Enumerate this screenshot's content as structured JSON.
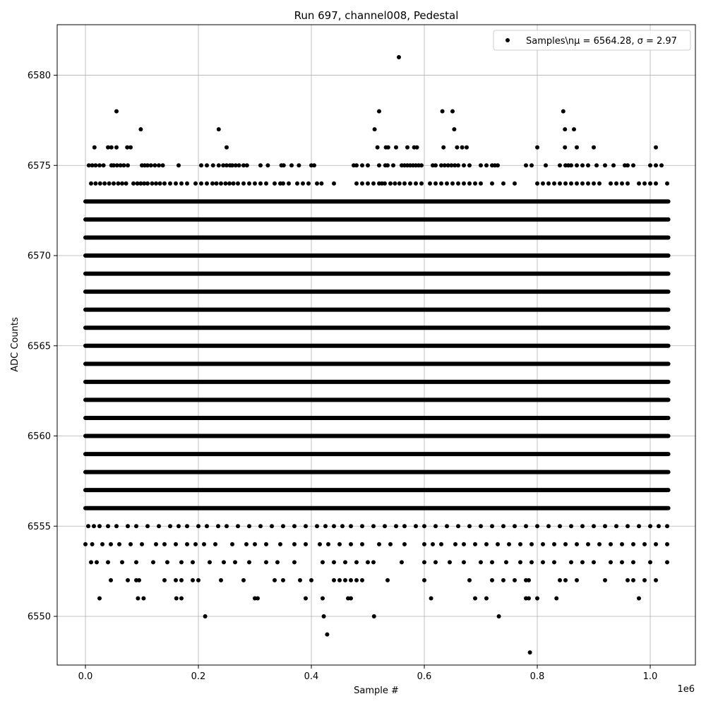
{
  "chart_data": {
    "type": "scatter",
    "title": "Run 697, channel008, Pedestal",
    "xlabel": "Sample #",
    "ylabel": "ADC Counts",
    "x_offset_label": "1e6",
    "xlim": [
      -0.05,
      1.08
    ],
    "ylim": [
      6547.3,
      6582.8
    ],
    "x_ticks": [
      0.0,
      0.2,
      0.4,
      0.6,
      0.8,
      1.0
    ],
    "x_tick_labels": [
      "0.0",
      "0.2",
      "0.4",
      "0.6",
      "0.8",
      "1.0"
    ],
    "y_ticks": [
      6550,
      6555,
      6560,
      6565,
      6570,
      6575,
      6580
    ],
    "y_tick_labels": [
      "6550",
      "6555",
      "6560",
      "6565",
      "6570",
      "6575",
      "6580"
    ],
    "grid": true,
    "legend": {
      "placement": "top-right",
      "label": "Samples\\nμ = 6564.28, σ = 2.97"
    },
    "marker_color": "#000000",
    "x_max_sample": 1.032,
    "dense_rows": [
      {
        "y": 6556,
        "x_range": [
          0.0,
          1.032
        ]
      },
      {
        "y": 6557,
        "x_range": [
          0.0,
          1.032
        ]
      },
      {
        "y": 6558,
        "x_range": [
          0.0,
          1.032
        ]
      },
      {
        "y": 6559,
        "x_range": [
          0.0,
          1.032
        ]
      },
      {
        "y": 6560,
        "x_range": [
          0.0,
          1.032
        ]
      },
      {
        "y": 6561,
        "x_range": [
          0.0,
          1.032
        ]
      },
      {
        "y": 6562,
        "x_range": [
          0.0,
          1.032
        ]
      },
      {
        "y": 6563,
        "x_range": [
          0.0,
          1.032
        ]
      },
      {
        "y": 6564,
        "x_range": [
          0.0,
          1.032
        ]
      },
      {
        "y": 6565,
        "x_range": [
          0.0,
          1.032
        ]
      },
      {
        "y": 6566,
        "x_range": [
          0.0,
          1.032
        ]
      },
      {
        "y": 6567,
        "x_range": [
          0.0,
          1.032
        ]
      },
      {
        "y": 6568,
        "x_range": [
          0.0,
          1.032
        ]
      },
      {
        "y": 6569,
        "x_range": [
          0.0,
          1.032
        ]
      },
      {
        "y": 6570,
        "x_range": [
          0.0,
          1.032
        ]
      },
      {
        "y": 6571,
        "x_range": [
          0.0,
          1.032
        ]
      },
      {
        "y": 6572,
        "x_range": [
          0.0,
          1.032
        ]
      },
      {
        "y": 6573,
        "x_range": [
          0.0,
          1.032
        ]
      }
    ],
    "sparse_rows": [
      {
        "y": 6575,
        "x": [
          0.006,
          0.012,
          0.018,
          0.025,
          0.032,
          0.046,
          0.05,
          0.056,
          0.062,
          0.068,
          0.075,
          0.1,
          0.105,
          0.11,
          0.116,
          0.123,
          0.13,
          0.137,
          0.165,
          0.205,
          0.215,
          0.226,
          0.236,
          0.244,
          0.25,
          0.256,
          0.26,
          0.266,
          0.272,
          0.28,
          0.286,
          0.31,
          0.323,
          0.347,
          0.351,
          0.365,
          0.378,
          0.4,
          0.405,
          0.475,
          0.48,
          0.49,
          0.5,
          0.52,
          0.531,
          0.535,
          0.545,
          0.56,
          0.565,
          0.57,
          0.575,
          0.58,
          0.585,
          0.59,
          0.595,
          0.615,
          0.62,
          0.63,
          0.636,
          0.642,
          0.648,
          0.654,
          0.66,
          0.67,
          0.68,
          0.7,
          0.71,
          0.72,
          0.725,
          0.73,
          0.78,
          0.79,
          0.815,
          0.84,
          0.85,
          0.855,
          0.86,
          0.87,
          0.88,
          0.89,
          0.905,
          0.92,
          0.935,
          0.955,
          0.96,
          0.97,
          1.0,
          1.01,
          1.02
        ]
      },
      {
        "y": 6574,
        "x": [
          0.01,
          0.018,
          0.026,
          0.034,
          0.042,
          0.05,
          0.058,
          0.065,
          0.072,
          0.085,
          0.092,
          0.098,
          0.104,
          0.11,
          0.118,
          0.125,
          0.132,
          0.14,
          0.15,
          0.16,
          0.17,
          0.18,
          0.195,
          0.205,
          0.215,
          0.225,
          0.232,
          0.24,
          0.248,
          0.255,
          0.262,
          0.27,
          0.28,
          0.29,
          0.3,
          0.31,
          0.32,
          0.335,
          0.345,
          0.35,
          0.36,
          0.375,
          0.385,
          0.395,
          0.41,
          0.418,
          0.44,
          0.48,
          0.49,
          0.5,
          0.51,
          0.52,
          0.525,
          0.53,
          0.54,
          0.548,
          0.556,
          0.565,
          0.575,
          0.585,
          0.595,
          0.61,
          0.62,
          0.63,
          0.64,
          0.65,
          0.66,
          0.67,
          0.68,
          0.69,
          0.7,
          0.72,
          0.74,
          0.76,
          0.8,
          0.81,
          0.82,
          0.83,
          0.84,
          0.85,
          0.86,
          0.87,
          0.88,
          0.89,
          0.9,
          0.91,
          0.93,
          0.94,
          0.95,
          0.96,
          0.98,
          0.99,
          1.0,
          1.01,
          1.03
        ]
      },
      {
        "y": 6576,
        "x": [
          0.016,
          0.04,
          0.046,
          0.055,
          0.074,
          0.08,
          0.25,
          0.517,
          0.532,
          0.536,
          0.55,
          0.57,
          0.582,
          0.587,
          0.634,
          0.658,
          0.667,
          0.675,
          0.8,
          0.849,
          0.87,
          0.9,
          1.01
        ]
      },
      {
        "y": 6577,
        "x": [
          0.098,
          0.236,
          0.512,
          0.653,
          0.849,
          0.865
        ]
      },
      {
        "y": 6578,
        "x": [
          0.055,
          0.52,
          0.632,
          0.65,
          0.846
        ]
      },
      {
        "y": 6581,
        "x": [
          0.555
        ]
      },
      {
        "y": 6555,
        "x": [
          0.005,
          0.015,
          0.025,
          0.04,
          0.055,
          0.075,
          0.09,
          0.11,
          0.13,
          0.15,
          0.165,
          0.18,
          0.2,
          0.215,
          0.235,
          0.25,
          0.27,
          0.29,
          0.31,
          0.33,
          0.35,
          0.37,
          0.39,
          0.41,
          0.425,
          0.44,
          0.455,
          0.47,
          0.49,
          0.51,
          0.53,
          0.55,
          0.565,
          0.585,
          0.6,
          0.62,
          0.64,
          0.66,
          0.68,
          0.7,
          0.72,
          0.74,
          0.76,
          0.78,
          0.8,
          0.82,
          0.84,
          0.86,
          0.88,
          0.9,
          0.92,
          0.94,
          0.96,
          0.98,
          1.0,
          1.015,
          1.03
        ]
      },
      {
        "y": 6554,
        "x": [
          0.0,
          0.012,
          0.03,
          0.045,
          0.06,
          0.08,
          0.1,
          0.125,
          0.14,
          0.16,
          0.18,
          0.195,
          0.21,
          0.23,
          0.26,
          0.285,
          0.3,
          0.32,
          0.345,
          0.37,
          0.39,
          0.415,
          0.43,
          0.45,
          0.47,
          0.49,
          0.52,
          0.54,
          0.565,
          0.6,
          0.615,
          0.63,
          0.655,
          0.67,
          0.69,
          0.71,
          0.73,
          0.75,
          0.77,
          0.79,
          0.81,
          0.83,
          0.85,
          0.87,
          0.89,
          0.91,
          0.93,
          0.95,
          0.97,
          0.99,
          1.01,
          1.03
        ]
      },
      {
        "y": 6553,
        "x": [
          0.01,
          0.02,
          0.04,
          0.065,
          0.09,
          0.12,
          0.145,
          0.17,
          0.19,
          0.22,
          0.245,
          0.265,
          0.29,
          0.32,
          0.34,
          0.37,
          0.42,
          0.44,
          0.46,
          0.48,
          0.5,
          0.51,
          0.56,
          0.6,
          0.62,
          0.645,
          0.67,
          0.7,
          0.72,
          0.745,
          0.77,
          0.79,
          0.81,
          0.83,
          0.86,
          0.88,
          0.9,
          0.93,
          0.95,
          0.97,
          1.0,
          1.03
        ]
      },
      {
        "y": 6552,
        "x": [
          0.045,
          0.075,
          0.09,
          0.095,
          0.14,
          0.16,
          0.17,
          0.19,
          0.2,
          0.24,
          0.28,
          0.335,
          0.35,
          0.38,
          0.4,
          0.44,
          0.45,
          0.46,
          0.47,
          0.48,
          0.49,
          0.535,
          0.6,
          0.68,
          0.72,
          0.74,
          0.76,
          0.78,
          0.785,
          0.84,
          0.85,
          0.87,
          0.92,
          0.96,
          0.97,
          0.99,
          1.01
        ]
      },
      {
        "y": 6551,
        "x": [
          0.025,
          0.093,
          0.103,
          0.161,
          0.17,
          0.3,
          0.305,
          0.39,
          0.42,
          0.465,
          0.47,
          0.612,
          0.69,
          0.71,
          0.78,
          0.785,
          0.8,
          0.834,
          0.98
        ]
      },
      {
        "y": 6550,
        "x": [
          0.212,
          0.422,
          0.511,
          0.732
        ]
      },
      {
        "y": 6549,
        "x": [
          0.428
        ]
      },
      {
        "y": 6548,
        "x": [
          0.787
        ]
      }
    ]
  }
}
